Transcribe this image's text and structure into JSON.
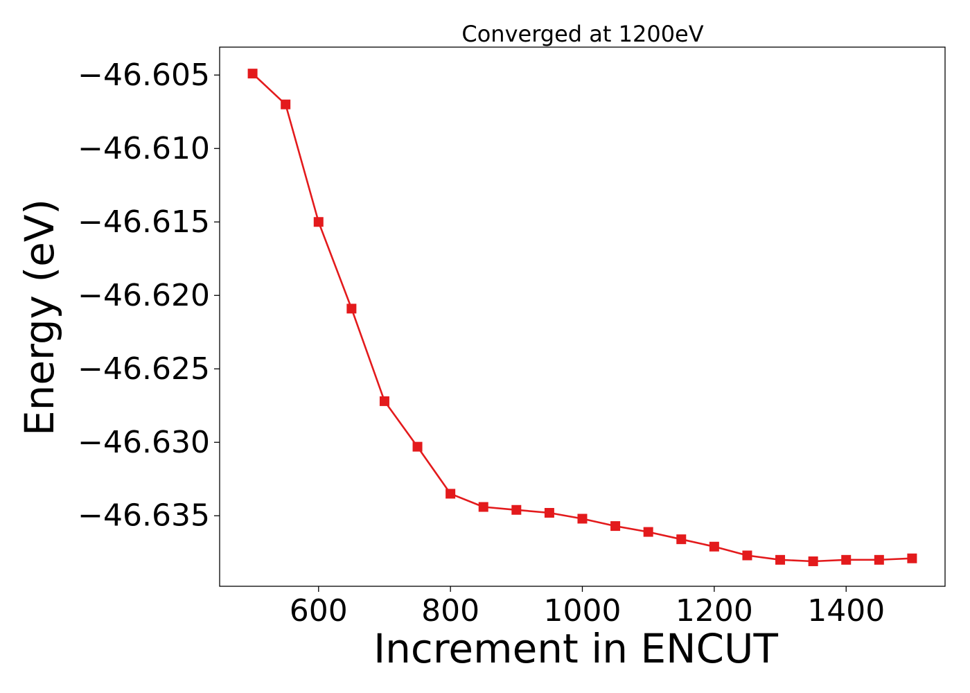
{
  "chart_data": {
    "type": "line",
    "title": "Converged at 1200eV",
    "xlabel": "Increment in ENCUT",
    "ylabel": "Energy (eV)",
    "xlim": [
      450,
      1550
    ],
    "ylim": [
      -46.6398,
      -46.6031
    ],
    "x_ticks": [
      600,
      800,
      1000,
      1200,
      1400
    ],
    "x_tick_labels": [
      "600",
      "800",
      "1000",
      "1200",
      "1400"
    ],
    "y_ticks": [
      -46.605,
      -46.61,
      -46.615,
      -46.62,
      -46.625,
      -46.63,
      -46.635
    ],
    "y_tick_labels": [
      "−46.605",
      "−46.610",
      "−46.615",
      "−46.620",
      "−46.625",
      "−46.630",
      "−46.635"
    ],
    "grid": false,
    "legend": "none",
    "series": [
      {
        "color": "#e31a1c",
        "marker": "square",
        "x": [
          500,
          550,
          600,
          650,
          700,
          750,
          800,
          850,
          900,
          950,
          1000,
          1050,
          1100,
          1150,
          1200,
          1250,
          1300,
          1350,
          1400,
          1450,
          1500
        ],
        "y": [
          -46.6049,
          -46.607,
          -46.615,
          -46.6209,
          -46.6272,
          -46.6303,
          -46.6335,
          -46.6344,
          -46.6346,
          -46.6348,
          -46.6352,
          -46.6357,
          -46.6361,
          -46.6366,
          -46.6371,
          -46.6377,
          -46.638,
          -46.6381,
          -46.638,
          -46.638,
          -46.6379
        ]
      }
    ]
  }
}
